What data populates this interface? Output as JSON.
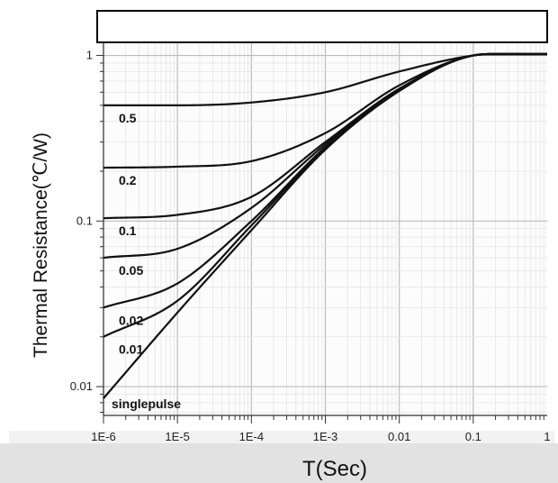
{
  "chart_data": {
    "type": "line",
    "title": "",
    "xlabel": "T(Sec)",
    "ylabel": "Thermal Resistance(℃/W)",
    "x_scale": "log",
    "y_scale": "log",
    "xlim": [
      1e-06,
      1
    ],
    "ylim": [
      0.0067,
      1.2
    ],
    "x_ticks": [
      {
        "value": 1e-06,
        "label": "1E-6"
      },
      {
        "value": 1e-05,
        "label": "1E-5"
      },
      {
        "value": 0.0001,
        "label": "1E-4"
      },
      {
        "value": 0.001,
        "label": "1E-3"
      },
      {
        "value": 0.01,
        "label": "0.01"
      },
      {
        "value": 0.1,
        "label": "0.1"
      },
      {
        "value": 1,
        "label": "1"
      }
    ],
    "y_ticks": [
      {
        "value": 0.01,
        "label": "0.01"
      },
      {
        "value": 0.1,
        "label": "0.1"
      },
      {
        "value": 1,
        "label": "1"
      }
    ],
    "grid": true,
    "series": [
      {
        "name": "0.5",
        "x": [
          1e-06,
          1e-05,
          0.0001,
          0.001,
          0.01,
          0.1,
          0.2,
          1
        ],
        "y": [
          0.5,
          0.5,
          0.52,
          0.6,
          0.8,
          1.0,
          1.02,
          1.02
        ]
      },
      {
        "name": "0.2",
        "x": [
          1e-06,
          1e-05,
          0.0001,
          0.001,
          0.01,
          0.1,
          0.2,
          1
        ],
        "y": [
          0.21,
          0.213,
          0.23,
          0.34,
          0.66,
          1.0,
          1.02,
          1.02
        ]
      },
      {
        "name": "0.1",
        "x": [
          1e-06,
          1e-05,
          0.0001,
          0.001,
          0.01,
          0.1,
          0.2,
          1
        ],
        "y": [
          0.104,
          0.109,
          0.14,
          0.3,
          0.63,
          1.0,
          1.02,
          1.02
        ]
      },
      {
        "name": "0.05",
        "x": [
          1e-06,
          1e-05,
          0.0001,
          0.001,
          0.01,
          0.1,
          0.2,
          1
        ],
        "y": [
          0.06,
          0.068,
          0.12,
          0.29,
          0.62,
          1.0,
          1.02,
          1.02
        ]
      },
      {
        "name": "0.02",
        "x": [
          1e-06,
          1e-05,
          0.0001,
          0.001,
          0.01,
          0.1,
          0.2,
          1
        ],
        "y": [
          0.03,
          0.042,
          0.1,
          0.28,
          0.62,
          1.0,
          1.02,
          1.02
        ]
      },
      {
        "name": "0.01",
        "x": [
          1e-06,
          1e-05,
          0.0001,
          0.001,
          0.01,
          0.1,
          0.2,
          1
        ],
        "y": [
          0.02,
          0.033,
          0.094,
          0.275,
          0.62,
          1.0,
          1.02,
          1.02
        ]
      },
      {
        "name": "singlepulse",
        "x": [
          1e-06,
          1e-05,
          0.0001,
          0.001,
          0.01,
          0.1,
          0.2,
          1
        ],
        "y": [
          0.0085,
          0.028,
          0.088,
          0.27,
          0.61,
          1.0,
          1.02,
          1.02
        ]
      }
    ]
  }
}
